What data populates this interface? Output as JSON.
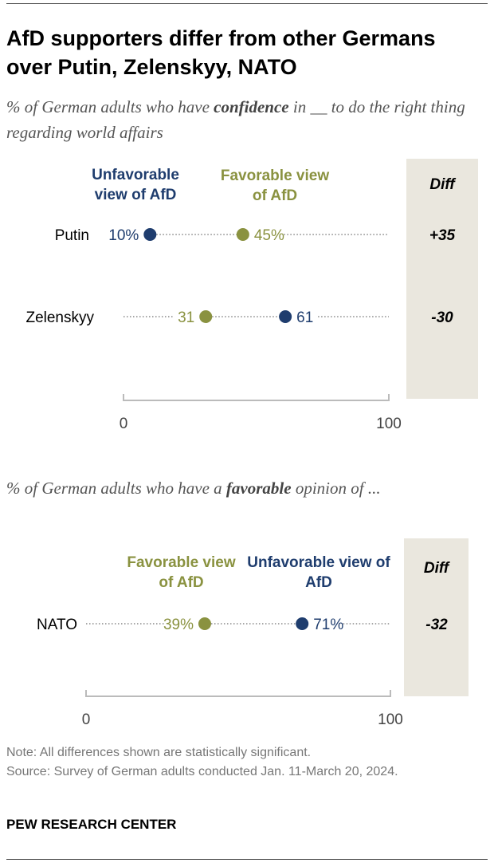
{
  "title": "AfD supporters differ from other Germans over Putin, Zelenskyy, NATO",
  "colors": {
    "unfavorable": "#1f3d6e",
    "favorable": "#8a9240",
    "diff_bg": "#eae7de"
  },
  "chart_data": [
    {
      "type": "dot",
      "subtitle_pre": "% of German adults who have ",
      "subtitle_bold": "confidence",
      "subtitle_post": " in __ to do the right thing regarding world affairs",
      "legend": {
        "unfavorable": "Unfavorable view of AfD",
        "favorable": "Favorable view of AfD"
      },
      "diff_header": "Diff",
      "xlim": [
        0,
        100
      ],
      "ticks": [
        "0",
        "100"
      ],
      "rows": [
        {
          "category": "Putin",
          "unfavorable": 10,
          "favorable": 45,
          "unfavorable_label": "10%",
          "favorable_label": "45%",
          "diff": "+35"
        },
        {
          "category": "Zelenskyy",
          "unfavorable": 61,
          "favorable": 31,
          "unfavorable_label": "61",
          "favorable_label": "31",
          "diff": "-30"
        }
      ]
    },
    {
      "type": "dot",
      "subtitle_pre": "% of German adults who have a ",
      "subtitle_bold": "favorable",
      "subtitle_post": " opinion of ...",
      "legend": {
        "unfavorable": "Unfavorable view of AfD",
        "favorable": "Favorable view of AfD"
      },
      "diff_header": "Diff",
      "xlim": [
        0,
        100
      ],
      "ticks": [
        "0",
        "100"
      ],
      "rows": [
        {
          "category": "NATO",
          "unfavorable": 71,
          "favorable": 39,
          "unfavorable_label": "71%",
          "favorable_label": "39%",
          "diff": "-32"
        }
      ]
    }
  ],
  "note": "Note: All differences shown are statistically significant.",
  "source": "Source: Survey of German adults conducted Jan. 11-March 20, 2024.",
  "brand": "PEW RESEARCH CENTER"
}
